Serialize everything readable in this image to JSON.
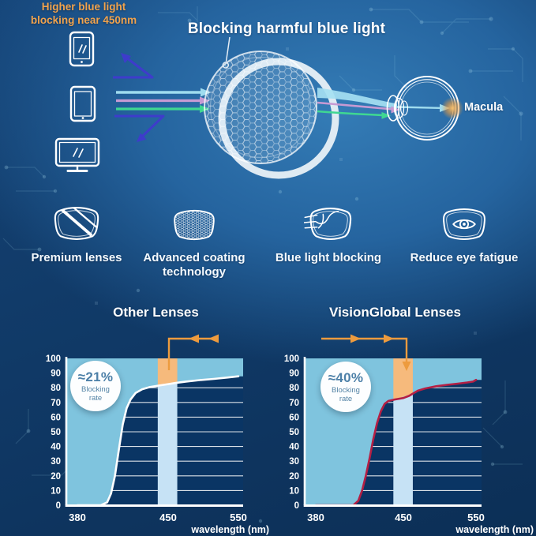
{
  "hero": {
    "title": "Blocking harmful blue light",
    "macula_label": "Macula"
  },
  "features": [
    {
      "icon": "lens-stripes-icon",
      "label": "Premium lenses"
    },
    {
      "icon": "lens-honeycomb-icon",
      "label": "Advanced coating technology"
    },
    {
      "icon": "lens-rays-icon",
      "label": "Blue light blocking"
    },
    {
      "icon": "lens-eye-icon",
      "label": "Reduce eye fatigue"
    }
  ],
  "comparison": {
    "annotation_line1": "Higher blue light",
    "annotation_line2": "blocking near 450nm"
  },
  "chart_data": [
    {
      "type": "area",
      "title": "Other Lenses",
      "xlabel": "wavelength (nm)",
      "x_ticks": [
        380,
        450,
        550
      ],
      "y_ticks": [
        0,
        10,
        20,
        30,
        40,
        50,
        60,
        70,
        80,
        90,
        100
      ],
      "ylim": [
        0,
        100
      ],
      "xlim": [
        380,
        560
      ],
      "grid": true,
      "badge": {
        "value": "≈21%",
        "label": "Blocking rate"
      },
      "blocking_rate_pct": 21,
      "highlight_band_nm": [
        442,
        463
      ],
      "series": [
        {
          "name": "other-lens transmission curve",
          "points": [
            [
              380,
              0
            ],
            [
              398,
              0
            ],
            [
              403,
              2
            ],
            [
              406,
              8
            ],
            [
              409,
              20
            ],
            [
              412,
              38
            ],
            [
              415,
              55
            ],
            [
              418,
              66
            ],
            [
              421,
              72
            ],
            [
              425,
              76.5
            ],
            [
              430,
              79
            ],
            [
              436,
              80.5
            ],
            [
              443,
              81.5
            ],
            [
              450,
              82.5
            ],
            [
              460,
              83.2
            ],
            [
              475,
              84.2
            ],
            [
              495,
              85.2
            ],
            [
              515,
              86
            ],
            [
              535,
              87
            ],
            [
              550,
              87.8
            ]
          ]
        }
      ],
      "colors": {
        "curve": "#ffffff",
        "area_above_curve": "#7fc4de",
        "band_below_curve": "#c6e2f5",
        "band_above_curve": "#f6ba7c",
        "plot_bg": "#0a3564"
      }
    },
    {
      "type": "area",
      "title": "VisionGlobal Lenses",
      "xlabel": "wavelength (nm)",
      "x_ticks": [
        380,
        450,
        550
      ],
      "y_ticks": [
        0,
        10,
        20,
        30,
        40,
        50,
        60,
        70,
        80,
        90,
        100
      ],
      "ylim": [
        0,
        100
      ],
      "xlim": [
        380,
        560
      ],
      "grid": true,
      "badge": {
        "value": "≈40%",
        "label": "Blocking rate"
      },
      "blocking_rate_pct": 40,
      "highlight_band_nm": [
        442,
        463
      ],
      "series": [
        {
          "name": "VisionGlobal lens transmission curve",
          "points": [
            [
              380,
              0
            ],
            [
              410,
              0
            ],
            [
              414,
              3
            ],
            [
              417,
              10
            ],
            [
              420,
              20
            ],
            [
              423,
              32
            ],
            [
              426,
              45
            ],
            [
              429,
              56
            ],
            [
              432,
              64
            ],
            [
              435,
              69
            ],
            [
              438,
              71
            ],
            [
              443,
              72
            ],
            [
              450,
              73
            ],
            [
              458,
              74.5
            ],
            [
              463,
              76
            ],
            [
              470,
              78
            ],
            [
              480,
              79.5
            ],
            [
              495,
              81
            ],
            [
              510,
              82
            ],
            [
              525,
              82.8
            ],
            [
              538,
              83.6
            ],
            [
              546,
              84.2
            ],
            [
              550,
              85.4
            ]
          ]
        }
      ],
      "colors": {
        "curve": "#b41f44",
        "area_above_curve": "#7fc4de",
        "band_below_curve": "#c6e2f5",
        "band_above_curve": "#f6ba7c",
        "plot_bg": "#0a3564"
      }
    }
  ],
  "palette": {
    "accent_orange": "#ed9b3e",
    "ray_cyan": "#9fdcef",
    "ray_pink": "#c79ad3",
    "ray_green": "#3fd792",
    "reflected_arrow": "#3e3ccb"
  }
}
